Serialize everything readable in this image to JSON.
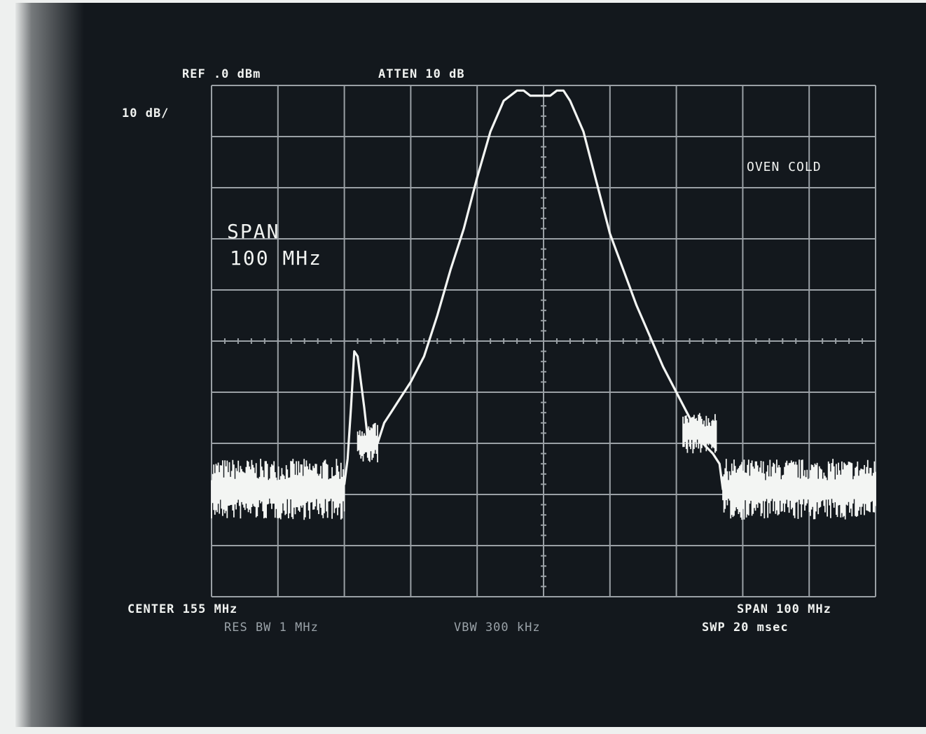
{
  "screen": {
    "ref_level": "REF .0 dBm",
    "attenuation": "ATTEN 10 dB",
    "scale": "10 dB/",
    "annotation": "OVEN COLD",
    "span_label": "SPAN",
    "span_value": "100 MHz",
    "center": "CENTER 155 MHz",
    "span_footer": "SPAN 100 MHz",
    "res_bw": "RES BW 1 MHz",
    "vbw": "VBW 300 kHz",
    "sweep": "SWP 20 msec"
  },
  "colors": {
    "background": "#13181d",
    "trace": "#f3f5f3",
    "grid": "#9aa0a5",
    "paper": "#eef0ef"
  },
  "chart_data": {
    "type": "line",
    "xlabel": "",
    "ylabel": "",
    "xlim": [
      105,
      205
    ],
    "ylim": [
      -100,
      0
    ],
    "x_unit": "MHz",
    "y_unit": "dBm",
    "grid": true,
    "divisions": {
      "x": 10,
      "y": 10
    },
    "series": [
      {
        "x": [
          105,
          115,
          125,
          125.5,
          126,
          126.5,
          127,
          128,
          128.6,
          129,
          130,
          131,
          132,
          133,
          135,
          137,
          139,
          141,
          143,
          145,
          147,
          149,
          151,
          152,
          153,
          154,
          155,
          156,
          157,
          158,
          159,
          161,
          163,
          165,
          167,
          169,
          171,
          173,
          175,
          177,
          179,
          180.5,
          181.5,
          182,
          183,
          185,
          195,
          205
        ],
        "y": [
          -79,
          -79,
          -78,
          -73,
          -63,
          -52,
          -53,
          -63,
          -70,
          -71,
          -70,
          -66,
          -64,
          -62,
          -58,
          -53,
          -45,
          -36,
          -28,
          -18,
          -9,
          -3,
          -1,
          -1,
          -2,
          -2,
          -2,
          -2,
          -1,
          -1,
          -3,
          -9,
          -19,
          -29,
          -36,
          -43,
          -49,
          -55,
          -60,
          -65,
          -70,
          -72,
          -74,
          -79,
          -79,
          -79,
          -79,
          -79
        ]
      }
    ]
  }
}
